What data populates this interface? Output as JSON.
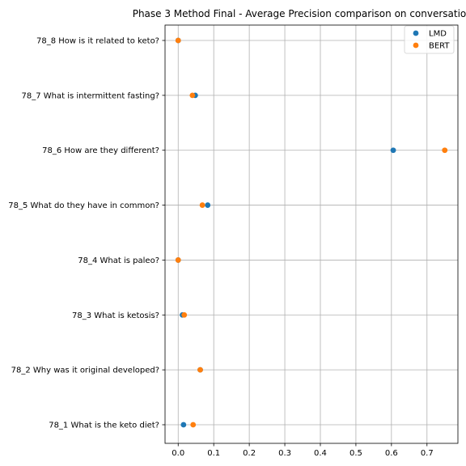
{
  "chart_data": {
    "type": "scatter",
    "title": "Phase 3 Method Final - Average Precision comparison on conversatio",
    "xlabel": "",
    "ylabel": "",
    "xlim": [
      -0.037,
      0.787
    ],
    "xticks": [
      0.0,
      0.1,
      0.2,
      0.3,
      0.4,
      0.5,
      0.6,
      0.7
    ],
    "xtick_labels": [
      "0.0",
      "0.1",
      "0.2",
      "0.3",
      "0.4",
      "0.5",
      "0.6",
      "0.7"
    ],
    "categories": [
      "78_8 How is it related to keto?",
      "78_7 What is intermittent fasting?",
      "78_6 How are they different?",
      "78_5 What do they have in common?",
      "78_4 What is paleo?",
      "78_3 What is ketosis?",
      "78_2 Why was it original developed?",
      "78_1 What is the keto diet?"
    ],
    "series": [
      {
        "name": "LMD",
        "color": "#1f77b4",
        "values": [
          0.0,
          0.048,
          0.605,
          0.083,
          0.0,
          0.012,
          0.062,
          0.015
        ]
      },
      {
        "name": "BERT",
        "color": "#ff7f0e",
        "values": [
          0.0,
          0.04,
          0.75,
          0.068,
          0.0,
          0.017,
          0.062,
          0.042
        ]
      }
    ],
    "grid": true,
    "legend_position": "top-right"
  }
}
